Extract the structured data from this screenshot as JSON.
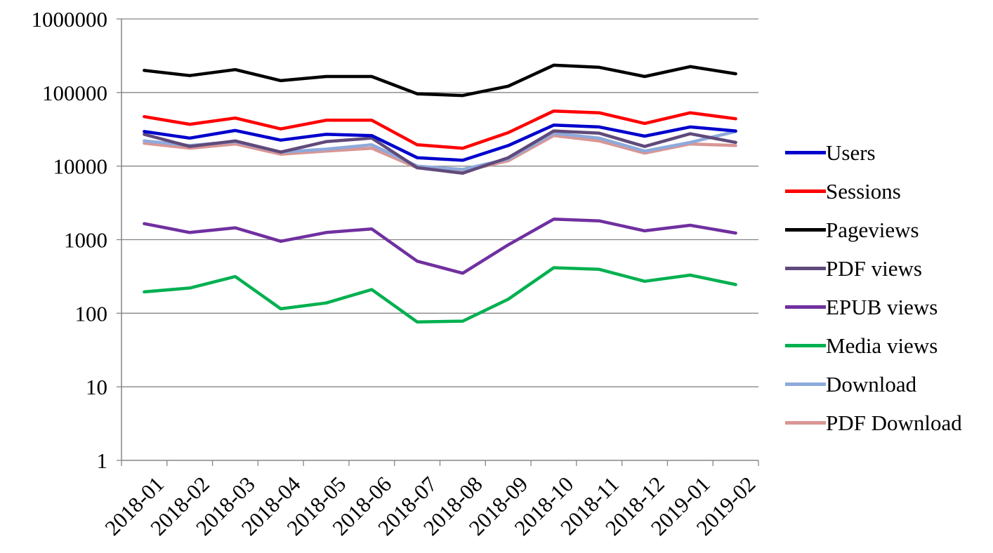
{
  "chart_data": {
    "type": "line",
    "title": "",
    "xlabel": "",
    "ylabel": "",
    "y_scale": "log",
    "ylim": [
      1,
      1000000
    ],
    "y_ticks": [
      "1",
      "10",
      "100",
      "1000",
      "10000",
      "100000",
      "1000000"
    ],
    "grid": "horizontal major gridlines",
    "legend_position": "right",
    "categories": [
      "2018-01",
      "2018-02",
      "2018-03",
      "2018-04",
      "2018-05",
      "2018-06",
      "2018-07",
      "2018-08",
      "2018-09",
      "2018-10",
      "2018-11",
      "2018-12",
      "2019-01",
      "2019-02"
    ],
    "series": [
      {
        "name": "Users",
        "color": "#0000cc",
        "values": [
          29500,
          24000,
          30500,
          22500,
          27000,
          26000,
          13000,
          12000,
          19000,
          36000,
          34000,
          25500,
          34000,
          30000
        ]
      },
      {
        "name": "Sessions",
        "color": "#ff0000",
        "values": [
          47000,
          37000,
          45000,
          32000,
          42000,
          42000,
          19500,
          17500,
          28500,
          56000,
          53000,
          38000,
          53000,
          44000
        ]
      },
      {
        "name": "Pageviews",
        "color": "#000000",
        "values": [
          200000,
          170000,
          205000,
          145000,
          165000,
          165000,
          96000,
          91000,
          122000,
          235000,
          220000,
          165000,
          225000,
          180000
        ]
      },
      {
        "name": "PDF views",
        "color": "#604a7b",
        "values": [
          27000,
          18500,
          22000,
          15500,
          21500,
          24000,
          9500,
          8000,
          13000,
          30000,
          28000,
          18500,
          27500,
          21000
        ]
      },
      {
        "name": "EPUB views",
        "color": "#7030a0",
        "values": [
          1650,
          1250,
          1450,
          950,
          1250,
          1400,
          510,
          350,
          850,
          1900,
          1800,
          1320,
          1570,
          1230
        ]
      },
      {
        "name": "Media views",
        "color": "#00b050",
        "values": [
          195,
          220,
          315,
          115,
          138,
          210,
          76,
          78,
          155,
          415,
          395,
          272,
          330,
          245
        ]
      },
      {
        "name": "Download",
        "color": "#8eaadb",
        "values": [
          22000,
          19000,
          21500,
          15500,
          17000,
          19500,
          10000,
          9000,
          12500,
          28000,
          24000,
          16000,
          21000,
          29500
        ]
      },
      {
        "name": "PDF Download",
        "color": "#d99694",
        "values": [
          20500,
          17500,
          20000,
          14500,
          16000,
          17500,
          9500,
          8500,
          11800,
          26000,
          22000,
          15000,
          20000,
          19000
        ]
      }
    ]
  }
}
